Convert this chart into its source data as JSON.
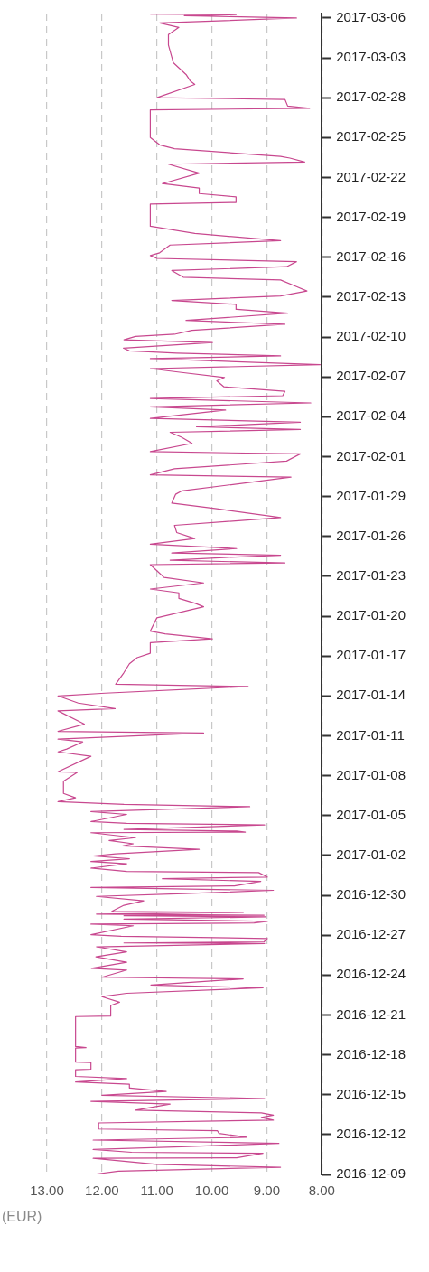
{
  "chart_data": {
    "type": "line",
    "orientation": "horizontal",
    "xlabel": "(EUR)",
    "grid": "x",
    "ylim": [
      "2016-12-09",
      "2017-03-06T08:00"
    ],
    "yticks": [
      "2016-12-09",
      "2016-12-12",
      "2016-12-15",
      "2016-12-18",
      "2016-12-21",
      "2016-12-24",
      "2016-12-27",
      "2016-12-30",
      "2017-01-02",
      "2017-01-05",
      "2017-01-08",
      "2017-01-11",
      "2017-01-14",
      "2017-01-17",
      "2017-01-20",
      "2017-01-23",
      "2017-01-26",
      "2017-01-29",
      "2017-02-01",
      "2017-02-04",
      "2017-02-07",
      "2017-02-10",
      "2017-02-13",
      "2017-02-16",
      "2017-02-19",
      "2017-02-22",
      "2017-02-25",
      "2017-02-28",
      "2017-03-03",
      "2017-03-06"
    ],
    "xlim": [
      13,
      8
    ],
    "xticks": [
      {
        "value": 8,
        "label": "8.00"
      },
      {
        "value": 9,
        "label": "9.00"
      },
      {
        "value": 10,
        "label": "10.00"
      },
      {
        "value": 11,
        "label": "11.00"
      },
      {
        "value": 12,
        "label": "12.00"
      },
      {
        "value": 13,
        "label": "13.00"
      }
    ],
    "series": [
      {
        "color": "#c8488f",
        "x": [
          "2016-12-09T00:00",
          "2016-12-09T06:00",
          "2016-12-09T13:00",
          "2016-12-09T18:00",
          "2016-12-10T05:00",
          "2016-12-10T06:00",
          "2016-12-10T14:00",
          "2016-12-10T16:00",
          "2016-12-10T21:00",
          "2016-12-11T02:00",
          "2016-12-11T08:00",
          "2016-12-11T14:00",
          "2016-12-11T19:00",
          "2016-12-12T02:00",
          "2016-12-12T07:00",
          "2016-12-12T10:00",
          "2016-12-12T21:00",
          "2016-12-13T02:00",
          "2016-12-13T07:00",
          "2016-12-13T11:00",
          "2016-12-13T15:00",
          "2016-12-13T20:00",
          "2016-12-14T07:00",
          "2016-12-14T12:00",
          "2016-12-14T17:00",
          "2016-12-14T23:00",
          "2016-12-15T06:00",
          "2016-12-15T12:00",
          "2016-12-15T19:00",
          "2016-12-15T23:00",
          "2016-12-16T05:00",
          "2016-12-16T09:00",
          "2016-12-16T21:00",
          "2016-12-16T22:00",
          "2016-12-17T10:00",
          "2016-12-17T11:00",
          "2016-12-18T12:00",
          "2016-12-18T13:00",
          "2016-12-18T15:00",
          "2016-12-20T21:00",
          "2016-12-20T22:00",
          "2016-12-21T17:00",
          "2016-12-21T23:00",
          "2016-12-22T09:00",
          "2016-12-22T15:00",
          "2016-12-23T01:00",
          "2016-12-23T06:00",
          "2016-12-23T17:00",
          "2016-12-23T20:00",
          "2016-12-24T09:00",
          "2016-12-24T12:00",
          "2016-12-24T23:00",
          "2016-12-25T09:00",
          "2016-12-25T18:00",
          "2016-12-26T03:00",
          "2016-12-26T09:00",
          "2016-12-26T10:00",
          "2016-12-26T12:00",
          "2016-12-26T18:00",
          "2016-12-26T22:00",
          "2016-12-27T01:00",
          "2016-12-27T17:00",
          "2016-12-27T20:00",
          "2016-12-27T22:00",
          "2016-12-28T01:00",
          "2016-12-28T05:00",
          "2016-12-28T09:00",
          "2016-12-28T11:00",
          "2016-12-28T12:00",
          "2016-12-28T14:00",
          "2016-12-28T17:00",
          "2016-12-28T19:00",
          "2016-12-29T06:00",
          "2016-12-29T14:00",
          "2016-12-29T22:00",
          "2016-12-30T03:00",
          "2016-12-30T09:00",
          "2016-12-30T14:00",
          "2016-12-30T17:00",
          "2016-12-31T01:00",
          "2016-12-31T06:00",
          "2016-12-31T09:00",
          "2016-12-31T17:00",
          "2016-12-31T19:00",
          "2017-01-01T01:00",
          "2017-01-01T09:00",
          "2017-01-01T13:00",
          "2017-01-01T18:00",
          "2017-01-01T23:00",
          "2017-01-02T03:00",
          "2017-01-02T11:00",
          "2017-01-02T17:00",
          "2017-01-02T21:00",
          "2017-01-03T03:00",
          "2017-01-03T08:00",
          "2017-01-03T17:00",
          "2017-01-03T18:00",
          "2017-01-03T20:00",
          "2017-01-03T23:00",
          "2017-01-04T07:00",
          "2017-01-04T10:00",
          "2017-01-04T13:00",
          "2017-01-05T02:00",
          "2017-01-05T07:00",
          "2017-01-05T16:00",
          "2017-01-05T20:00",
          "2017-01-06T01:00",
          "2017-01-06T08:00",
          "2017-01-06T16:00",
          "2017-01-07T14:00",
          "2017-01-08T06:00",
          "2017-01-08T07:00",
          "2017-01-09T11:00",
          "2017-01-09T19:00",
          "2017-01-10T00:00",
          "2017-01-10T13:00",
          "2017-01-10T18:00",
          "2017-01-11T05:00",
          "2017-01-11T08:00",
          "2017-01-11T21:00",
          "2017-01-12T21:00",
          "2017-01-13T01:00",
          "2017-01-13T11:00",
          "2017-01-14T00:00",
          "2017-01-14T05:00",
          "2017-01-14T17:00",
          "2017-01-14T21:00",
          "2017-01-15T18:00",
          "2017-01-16T10:00",
          "2017-01-16T21:00",
          "2017-01-17T05:00",
          "2017-01-18T00:00",
          "2017-01-18T07:00",
          "2017-01-18T16:00",
          "2017-01-18T21:00",
          "2017-01-19T21:00",
          "2017-01-20T17:00",
          "2017-01-20T23:00",
          "2017-01-21T08:00",
          "2017-01-21T18:00",
          "2017-01-22T01:00",
          "2017-01-22T12:00",
          "2017-01-22T22:00",
          "2017-01-23T10:00",
          "2017-01-23T21:00",
          "2017-01-24T00:00",
          "2017-01-24T05:00",
          "2017-01-24T10:00",
          "2017-01-24T14:00",
          "2017-01-24T18:00",
          "2017-01-25T02:00",
          "2017-01-25T10:00",
          "2017-01-25T20:00",
          "2017-01-26T07:00",
          "2017-01-26T20:00",
          "2017-01-27T10:00",
          "2017-01-28T02:00",
          "2017-01-28T12:00",
          "2017-01-29T04:00",
          "2017-01-29T10:00",
          "2017-01-30T11:00",
          "2017-01-30T15:00",
          "2017-01-31T02:00",
          "2017-01-31T16:00",
          "2017-02-01T05:00",
          "2017-02-01T09:00",
          "2017-02-02T00:00",
          "2017-02-02T11:00",
          "2017-02-02T20:00",
          "2017-02-03T01:00",
          "2017-02-03T06:00",
          "2017-02-03T14:00",
          "2017-02-03T21:00",
          "2017-02-04T12:00",
          "2017-02-04T18:00",
          "2017-02-05T01:00",
          "2017-02-05T09:00",
          "2017-02-05T14:00",
          "2017-02-05T22:00",
          "2017-02-06T06:00",
          "2017-02-06T17:00",
          "2017-02-06T23:00",
          "2017-02-07T08:00",
          "2017-02-07T15:00",
          "2017-02-07T22:00",
          "2017-02-08T09:00",
          "2017-02-08T14:00",
          "2017-02-08T19:00",
          "2017-02-08T23:00",
          "2017-02-09T04:00",
          "2017-02-09T14:00",
          "2017-02-09T19:00",
          "2017-02-10T01:00",
          "2017-02-10T05:00",
          "2017-02-10T12:00",
          "2017-02-10T23:00",
          "2017-02-11T06:00",
          "2017-02-11T19:00",
          "2017-02-12T02:00",
          "2017-02-12T11:00",
          "2017-02-12T18:00",
          "2017-02-13T02:00",
          "2017-02-13T11:00",
          "2017-02-13T19:00",
          "2017-02-14T07:00",
          "2017-02-14T12:00",
          "2017-02-15T00:00",
          "2017-02-15T07:00",
          "2017-02-15T16:00",
          "2017-02-15T22:00",
          "2017-02-16T03:00",
          "2017-02-16T08:00",
          "2017-02-16T22:00",
          "2017-02-17T06:00",
          "2017-02-17T19:00",
          "2017-02-18T08:00",
          "2017-02-20T00:00",
          "2017-02-20T03:00",
          "2017-02-20T13:00",
          "2017-02-20T19:00",
          "2017-02-21T05:00",
          "2017-02-21T13:00",
          "2017-02-22T08:00",
          "2017-02-23T00:00",
          "2017-02-23T04:00",
          "2017-02-23T11:00",
          "2017-02-23T14:00",
          "2017-02-24T04:00",
          "2017-02-24T11:00",
          "2017-02-25T00:00",
          "2017-02-27T02:00",
          "2017-02-27T05:00",
          "2017-02-27T09:00",
          "2017-02-27T21:00",
          "2017-02-28T00:00",
          "2017-03-01T00:00",
          "2017-03-01T06:00",
          "2017-03-01T18:00",
          "2017-03-02T15:00",
          "2017-03-03T23:00",
          "2017-03-04T18:00",
          "2017-03-05T07:00",
          "2017-03-05T15:00",
          "2017-03-06T00:00",
          "2017-03-06T04:00",
          "2017-03-06T06:00",
          "2017-03-06T07:00"
        ],
        "values": [
          12.16,
          11.7,
          8.75,
          11.0,
          12.16,
          9.55,
          9.07,
          11.46,
          12.16,
          10.55,
          8.78,
          12.16,
          9.36,
          9.87,
          9.9,
          12.06,
          12.06,
          8.88,
          9.1,
          8.88,
          9.1,
          11.39,
          10.76,
          12.2,
          9.04,
          12.0,
          10.83,
          11.49,
          11.5,
          12.48,
          11.55,
          12.48,
          12.48,
          12.2,
          12.2,
          12.48,
          12.48,
          12.29,
          12.48,
          12.48,
          11.84,
          11.84,
          11.68,
          12.0,
          11.55,
          9.07,
          11.11,
          9.43,
          12.0,
          11.55,
          12.19,
          11.55,
          12.11,
          11.55,
          12.1,
          9.04,
          11.6,
          9.05,
          8.99,
          11.65,
          12.2,
          11.43,
          12.2,
          9.23,
          8.99,
          11.6,
          9.02,
          11.6,
          9.05,
          12.1,
          9.43,
          11.82,
          11.6,
          11.24,
          12.1,
          10.5,
          8.88,
          12.2,
          9.59,
          9.11,
          10.9,
          8.99,
          9.15,
          11.55,
          12.2,
          11.55,
          12.2,
          11.5,
          12.16,
          11.75,
          10.23,
          11.62,
          11.43,
          11.87,
          11.39,
          12.2,
          9.39,
          9.55,
          11.6,
          9.04,
          11.55,
          12.2,
          11.55,
          12.2,
          9.31,
          11.6,
          12.8,
          12.48,
          12.7,
          12.7,
          12.45,
          12.8,
          12.2,
          12.8,
          12.64,
          12.35,
          12.8,
          10.15,
          12.8,
          12.32,
          12.8,
          11.76,
          12.43,
          12.8,
          11.94,
          9.34,
          11.75,
          11.6,
          11.5,
          11.36,
          11.12,
          11.12,
          9.99,
          10.85,
          11.12,
          11.0,
          10.15,
          10.3,
          10.6,
          10.6,
          11.12,
          10.15,
          10.87,
          11.0,
          11.12,
          8.67,
          10.76,
          9.78,
          8.75,
          10.73,
          9.55,
          11.12,
          10.31,
          10.64,
          10.68,
          8.75,
          9.91,
          10.73,
          10.66,
          10.55,
          8.56,
          11.12,
          10.68,
          8.64,
          8.39,
          11.12,
          10.36,
          10.55,
          10.76,
          8.39,
          10.28,
          8.39,
          11.12,
          9.75,
          11.12,
          8.2,
          11.12,
          8.71,
          8.67,
          9.78,
          9.91,
          9.77,
          10.55,
          11.12,
          8.03,
          11.12,
          8.75,
          10.64,
          11.5,
          11.61,
          9.99,
          11.6,
          11.39,
          10.68,
          10.36,
          8.67,
          10.47,
          8.62,
          9.55,
          9.56,
          10.73,
          8.75,
          8.27,
          8.46,
          8.75,
          10.52,
          10.73,
          8.64,
          8.46,
          11.0,
          11.12,
          10.95,
          10.76,
          8.75,
          10.31,
          11.12,
          11.12,
          9.56,
          9.56,
          10.23,
          10.23,
          10.9,
          10.23,
          10.79,
          8.31,
          8.58,
          8.75,
          10.68,
          10.95,
          11.12,
          11.12,
          8.22,
          8.62,
          8.67,
          11.0,
          10.31,
          10.39,
          10.47,
          10.7,
          10.79,
          10.79,
          10.6,
          10.95,
          8.46,
          10.5,
          9.56,
          11.12
        ]
      }
    ]
  }
}
